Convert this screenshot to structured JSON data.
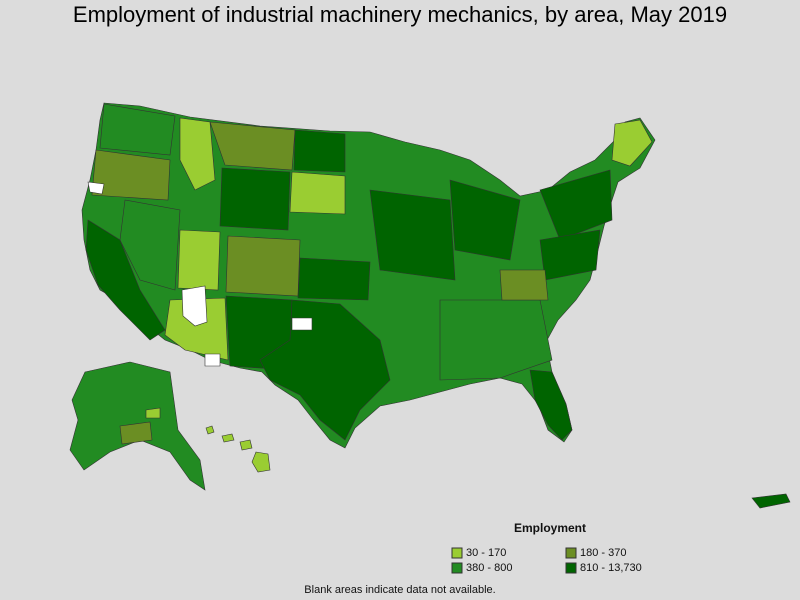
{
  "title": "Employment of industrial machinery mechanics, by area, May 2019",
  "legend": {
    "title": "Employment",
    "items": [
      {
        "label": "30 - 170",
        "color": "#9acd32"
      },
      {
        "label": "180 - 370",
        "color": "#6b8e23"
      },
      {
        "label": "380 - 800",
        "color": "#228b22"
      },
      {
        "label": "810 - 13,730",
        "color": "#006400"
      }
    ]
  },
  "footnote": "Blank areas indicate data not available.",
  "colors": {
    "background": "#dcdcdc",
    "no_data": "#ffffff",
    "border": "#333333"
  }
}
